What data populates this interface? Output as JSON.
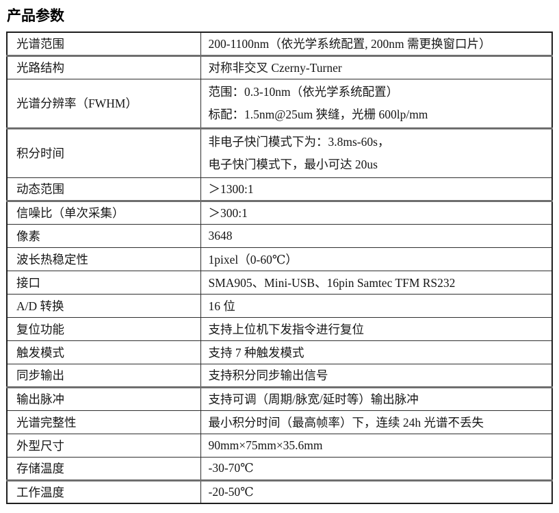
{
  "page": {
    "title": "产品参数"
  },
  "table": {
    "rows": [
      {
        "label": "光谱范围",
        "values": [
          "200-1100nm（依光学系统配置, 200nm 需更换窗口片）"
        ]
      },
      {
        "label": "光路结构",
        "values": [
          "对称非交叉  Czerny-Turner"
        ]
      },
      {
        "label": "光谱分辨率（FWHM）",
        "values": [
          "范围：0.3-10nm（依光学系统配置）",
          "标配：1.5nm@25um 狭缝，光栅 600lp/mm"
        ]
      },
      {
        "label": "积分时间",
        "values": [
          "非电子快门模式下为：3.8ms-60s，",
          "电子快门模式下，最小可达 20us"
        ]
      },
      {
        "label": "动态范围",
        "values": [
          "＞1300:1"
        ]
      },
      {
        "label": "信噪比（单次采集）",
        "values": [
          "＞300:1"
        ]
      },
      {
        "label": "像素",
        "values": [
          "3648"
        ]
      },
      {
        "label": "波长热稳定性",
        "values": [
          "1pixel（0-60℃）"
        ]
      },
      {
        "label": "接口",
        "values": [
          "SMA905、Mini-USB、16pin Samtec TFM RS232"
        ]
      },
      {
        "label": "A/D 转换",
        "values": [
          "16 位"
        ]
      },
      {
        "label": "复位功能",
        "values": [
          "支持上位机下发指令进行复位"
        ]
      },
      {
        "label": "触发模式",
        "values": [
          "支持 7 种触发模式"
        ]
      },
      {
        "label": "同步输出",
        "values": [
          "支持积分同步输出信号"
        ]
      },
      {
        "label": "输出脉冲",
        "values": [
          "支持可调（周期/脉宽/延时等）输出脉冲"
        ]
      },
      {
        "label": "光谱完整性",
        "values": [
          "最小积分时间（最高帧率）下，连续 24h 光谱不丢失"
        ]
      },
      {
        "label": "外型尺寸",
        "values": [
          "90mm×75mm×35.6mm"
        ]
      },
      {
        "label": "存储温度",
        "values": [
          "-30-70℃"
        ]
      },
      {
        "label": "工作温度",
        "values": [
          "-20-50℃"
        ]
      }
    ]
  }
}
